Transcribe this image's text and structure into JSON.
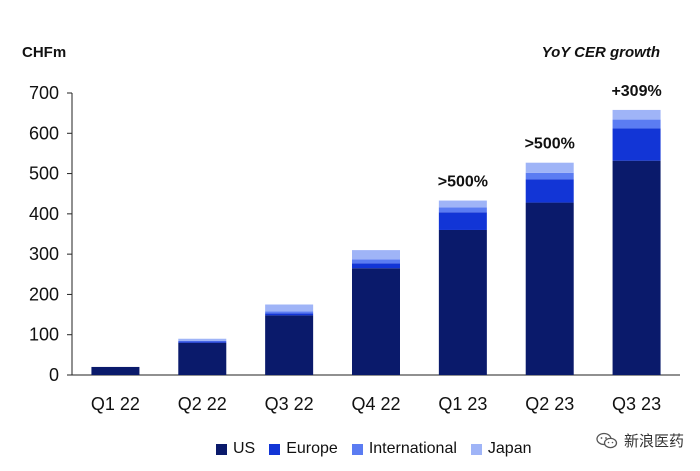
{
  "chart_data": {
    "type": "bar",
    "stacked": true,
    "unit_label": "CHFm",
    "growth_header": "YoY CER growth",
    "categories": [
      "Q1 22",
      "Q2 22",
      "Q3 22",
      "Q4 22",
      "Q1 23",
      "Q2 23",
      "Q3 23"
    ],
    "series": [
      {
        "name": "US",
        "color": "#0a1a6b",
        "values": [
          20,
          80,
          148,
          265,
          360,
          428,
          532
        ]
      },
      {
        "name": "Europe",
        "color": "#1235d6",
        "values": [
          0,
          3,
          5,
          12,
          44,
          58,
          80
        ]
      },
      {
        "name": "International",
        "color": "#5b7cf2",
        "values": [
          0,
          2,
          5,
          10,
          12,
          16,
          22
        ]
      },
      {
        "name": "Japan",
        "color": "#9fb4f7",
        "values": [
          0,
          5,
          17,
          23,
          17,
          25,
          24
        ]
      }
    ],
    "growth_labels": [
      "",
      "",
      "",
      "",
      ">500%",
      ">500%",
      "+309%"
    ],
    "ylim": [
      0,
      700
    ],
    "yticks": [
      0,
      100,
      200,
      300,
      400,
      500,
      600,
      700
    ],
    "xlabel": "",
    "ylabel": "",
    "legend_position": "bottom",
    "grid": false
  },
  "watermark": {
    "text": "新浪医药"
  }
}
